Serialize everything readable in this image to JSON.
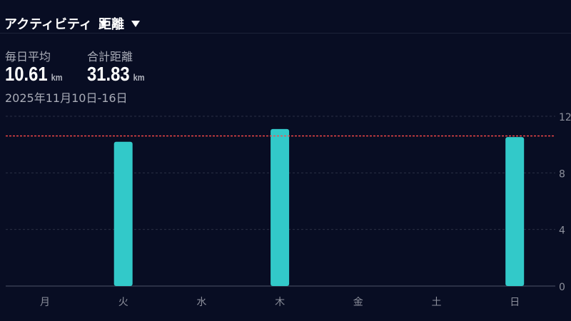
{
  "header": {
    "activity_dropdown": "アクティビティ",
    "metric_dropdown": "距離"
  },
  "summary": {
    "avg_label": "毎日平均",
    "avg_value": "10.61",
    "avg_unit": "km",
    "total_label": "合計距離",
    "total_value": "31.83",
    "total_unit": "km",
    "date_range": "2025年11月10日-16日"
  },
  "chart_data": {
    "type": "bar",
    "categories": [
      "月",
      "火",
      "水",
      "木",
      "金",
      "土",
      "日"
    ],
    "values": [
      0,
      10.2,
      0,
      11.1,
      0,
      0,
      10.53
    ],
    "yticks": [
      0,
      4,
      8,
      12
    ],
    "ylim": [
      0,
      12
    ],
    "average_line": 10.61,
    "bar_color": "#32c9c9",
    "average_color": "#ff4a4a",
    "grid": true
  }
}
